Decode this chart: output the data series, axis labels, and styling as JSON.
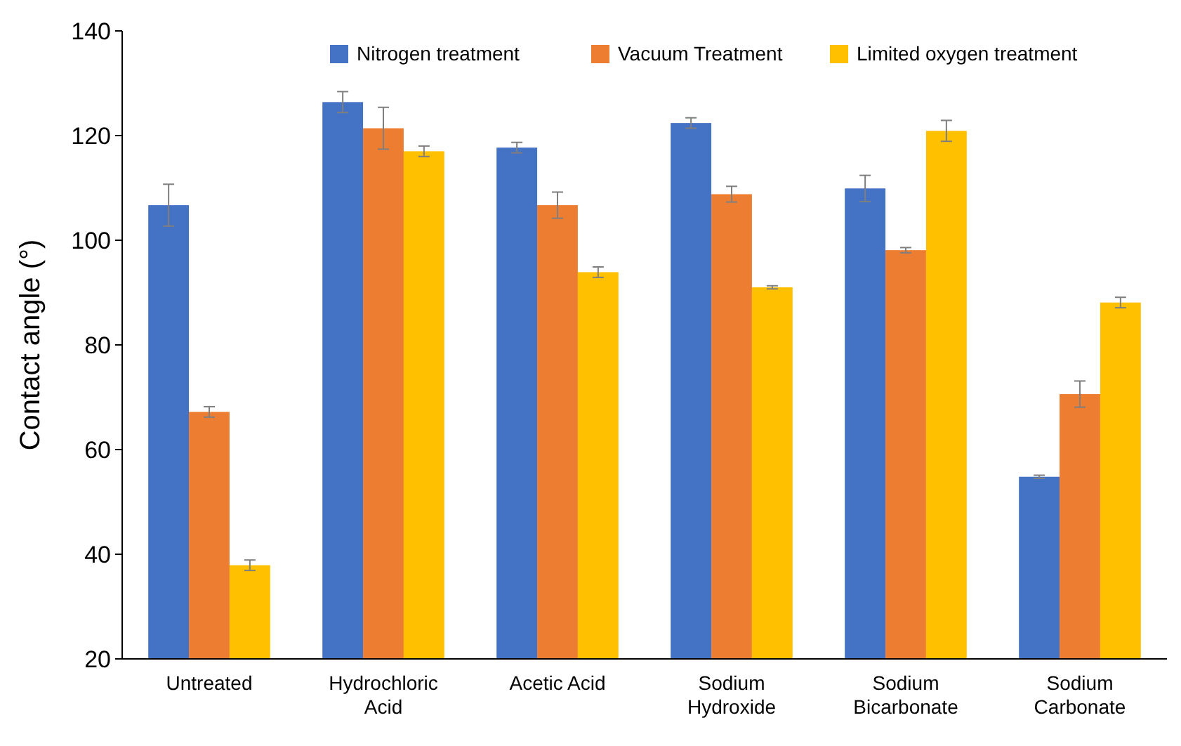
{
  "chart_data": {
    "type": "bar",
    "ylabel": "Contact angle (°)",
    "categories": [
      "Untreated",
      "Hydrochloric Acid",
      "Acetic Acid",
      "Sodium Hydroxide",
      "Sodium Bicarbonate",
      "Sodium Carbonate"
    ],
    "series": [
      {
        "name": "Nitrogen treatment",
        "color": "#4472c4",
        "values": [
          106.7,
          126.4,
          117.7,
          122.4,
          109.9,
          54.8
        ],
        "errors": [
          4,
          2,
          1,
          1,
          2.5,
          0.3
        ]
      },
      {
        "name": "Vacuum Treatment",
        "color": "#ed7d31",
        "values": [
          67.2,
          121.4,
          106.7,
          108.8,
          98.1,
          70.6
        ],
        "errors": [
          1,
          4,
          2.5,
          1.5,
          0.5,
          2.5
        ]
      },
      {
        "name": "Limited oxygen treatment",
        "color": "#ffc000",
        "values": [
          37.9,
          117,
          93.9,
          91,
          120.9,
          88.1
        ],
        "errors": [
          1,
          1,
          1,
          0.3,
          2,
          1
        ]
      }
    ],
    "ylim": [
      20,
      140
    ],
    "yticks": [
      20,
      40,
      60,
      80,
      100,
      120,
      140
    ],
    "grid": false,
    "legend": "top right"
  }
}
